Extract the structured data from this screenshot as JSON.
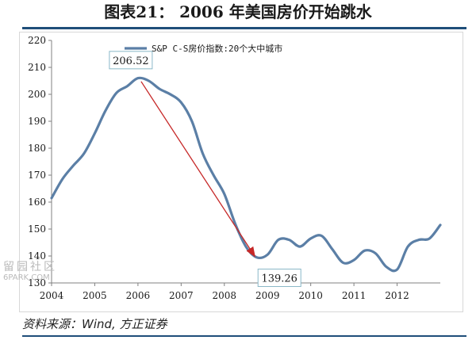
{
  "figure": {
    "title": "图表21： 2006 年美国房价开始跳水",
    "source": "资料来源：Wind, 方正证券",
    "watermark": {
      "cn": "留园社区",
      "en": "6PARK.COM"
    }
  },
  "colors": {
    "series": "#5b7fa6",
    "arrow": "#c62828",
    "callout_border": "#8ab8c8",
    "rule": "#1f4e79",
    "text": "#1a1a1a"
  },
  "chart_data": {
    "type": "line",
    "title": "",
    "xlabel": "",
    "ylabel": "",
    "x_tick_labels": [
      "2004",
      "2005",
      "2006",
      "2007",
      "2008",
      "2009",
      "2010",
      "2011",
      "2012"
    ],
    "xlim": [
      2004.0,
      2013.0
    ],
    "ylim": [
      130,
      220
    ],
    "y_ticks": [
      130,
      140,
      150,
      160,
      170,
      180,
      190,
      200,
      210,
      220
    ],
    "grid": false,
    "legend": "top-center",
    "series": [
      {
        "name": "S&P C-S房价指数:20个大中城市",
        "x": [
          2004.0,
          2004.25,
          2004.5,
          2004.75,
          2005.0,
          2005.25,
          2005.5,
          2005.75,
          2006.0,
          2006.25,
          2006.5,
          2006.75,
          2007.0,
          2007.25,
          2007.5,
          2007.75,
          2008.0,
          2008.25,
          2008.5,
          2008.75,
          2009.0,
          2009.25,
          2009.5,
          2009.75,
          2010.0,
          2010.25,
          2010.5,
          2010.75,
          2011.0,
          2011.25,
          2011.5,
          2011.75,
          2012.0,
          2012.25,
          2012.5,
          2012.75,
          2013.0
        ],
        "y": [
          161.5,
          168.5,
          173.5,
          178.0,
          185.5,
          194.0,
          200.5,
          203.0,
          206.0,
          205.0,
          202.0,
          200.0,
          197.0,
          190.0,
          178.0,
          170.0,
          163.0,
          152.0,
          143.5,
          139.5,
          140.5,
          146.0,
          146.0,
          143.5,
          146.5,
          147.5,
          142.5,
          137.5,
          138.5,
          142.0,
          141.0,
          136.0,
          135.0,
          143.5,
          146.0,
          146.5,
          151.5
        ]
      }
    ],
    "annotations": [
      {
        "label": "206.52",
        "x": 2006.0,
        "y": 206.52
      },
      {
        "label": "139.26",
        "x": 2009.0,
        "y": 139.26
      }
    ]
  }
}
